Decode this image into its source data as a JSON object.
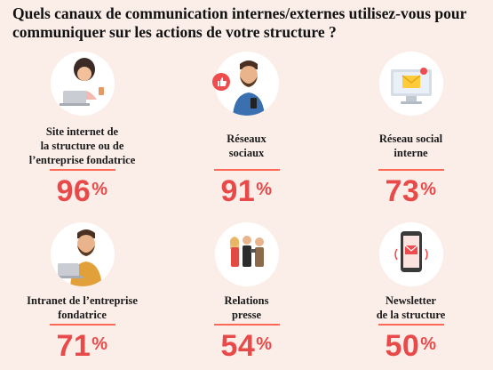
{
  "title": "Quels canaux de communication internes/externes utilisez-vous pour communiquer sur les actions de votre structure ?",
  "colors": {
    "background": "#fbeee9",
    "accent": "#e84a4a",
    "rule": "#ff6a57"
  },
  "channels": [
    {
      "label_lines": [
        "Site internet de",
        "la structure ou de",
        "l’entreprise fondatrice"
      ],
      "value": "96",
      "unit": "%",
      "icon": "woman-laptop-icon"
    },
    {
      "label_lines": [
        "Réseaux",
        "sociaux"
      ],
      "value": "91",
      "unit": "%",
      "icon": "man-phone-like-icon"
    },
    {
      "label_lines": [
        "Réseau social",
        "interne"
      ],
      "value": "73",
      "unit": "%",
      "icon": "monitor-mail-icon"
    },
    {
      "label_lines": [
        "Intranet de l’entreprise",
        "fondatrice"
      ],
      "value": "71",
      "unit": "%",
      "icon": "man-laptop-icon"
    },
    {
      "label_lines": [
        "Relations",
        "presse"
      ],
      "value": "54",
      "unit": "%",
      "icon": "press-people-icon"
    },
    {
      "label_lines": [
        "Newsletter",
        "de la structure"
      ],
      "value": "50",
      "unit": "%",
      "icon": "phone-newsletter-icon"
    }
  ]
}
